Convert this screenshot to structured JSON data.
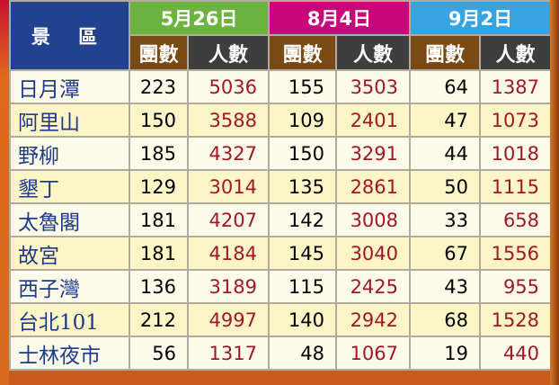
{
  "header": {
    "area": "景 區",
    "dates": [
      "5月26日",
      "8月4日",
      "9月2日"
    ],
    "group_label": "團數",
    "people_label": "人數"
  },
  "colors": {
    "area_header": "#22418e",
    "date1": "#6cb33f",
    "date2": "#c8087a",
    "date3": "#36a4e0",
    "group_header": "#7a4a14",
    "people_header": "#3e3e3e",
    "people_value": "#a01828"
  },
  "rows": [
    {
      "name": "日月潭",
      "v": [
        "223",
        "5036",
        "155",
        "3503",
        "64",
        "1387"
      ]
    },
    {
      "name": "阿里山",
      "v": [
        "150",
        "3588",
        "109",
        "2401",
        "47",
        "1073"
      ]
    },
    {
      "name": "野柳",
      "v": [
        "185",
        "4327",
        "150",
        "3291",
        "44",
        "1018"
      ]
    },
    {
      "name": "墾丁",
      "v": [
        "129",
        "3014",
        "135",
        "2861",
        "50",
        "1115"
      ]
    },
    {
      "name": "太魯閣",
      "v": [
        "181",
        "4207",
        "142",
        "3008",
        "33",
        "658"
      ]
    },
    {
      "name": "故宮",
      "v": [
        "181",
        "4184",
        "145",
        "3040",
        "67",
        "1556"
      ]
    },
    {
      "name": "西子灣",
      "v": [
        "136",
        "3189",
        "115",
        "2425",
        "43",
        "955"
      ]
    },
    {
      "name": "台北101",
      "v": [
        "212",
        "4997",
        "140",
        "2942",
        "68",
        "1528"
      ]
    },
    {
      "name": "士林夜市",
      "v": [
        "56",
        "1317",
        "48",
        "1067",
        "19",
        "440"
      ]
    }
  ]
}
